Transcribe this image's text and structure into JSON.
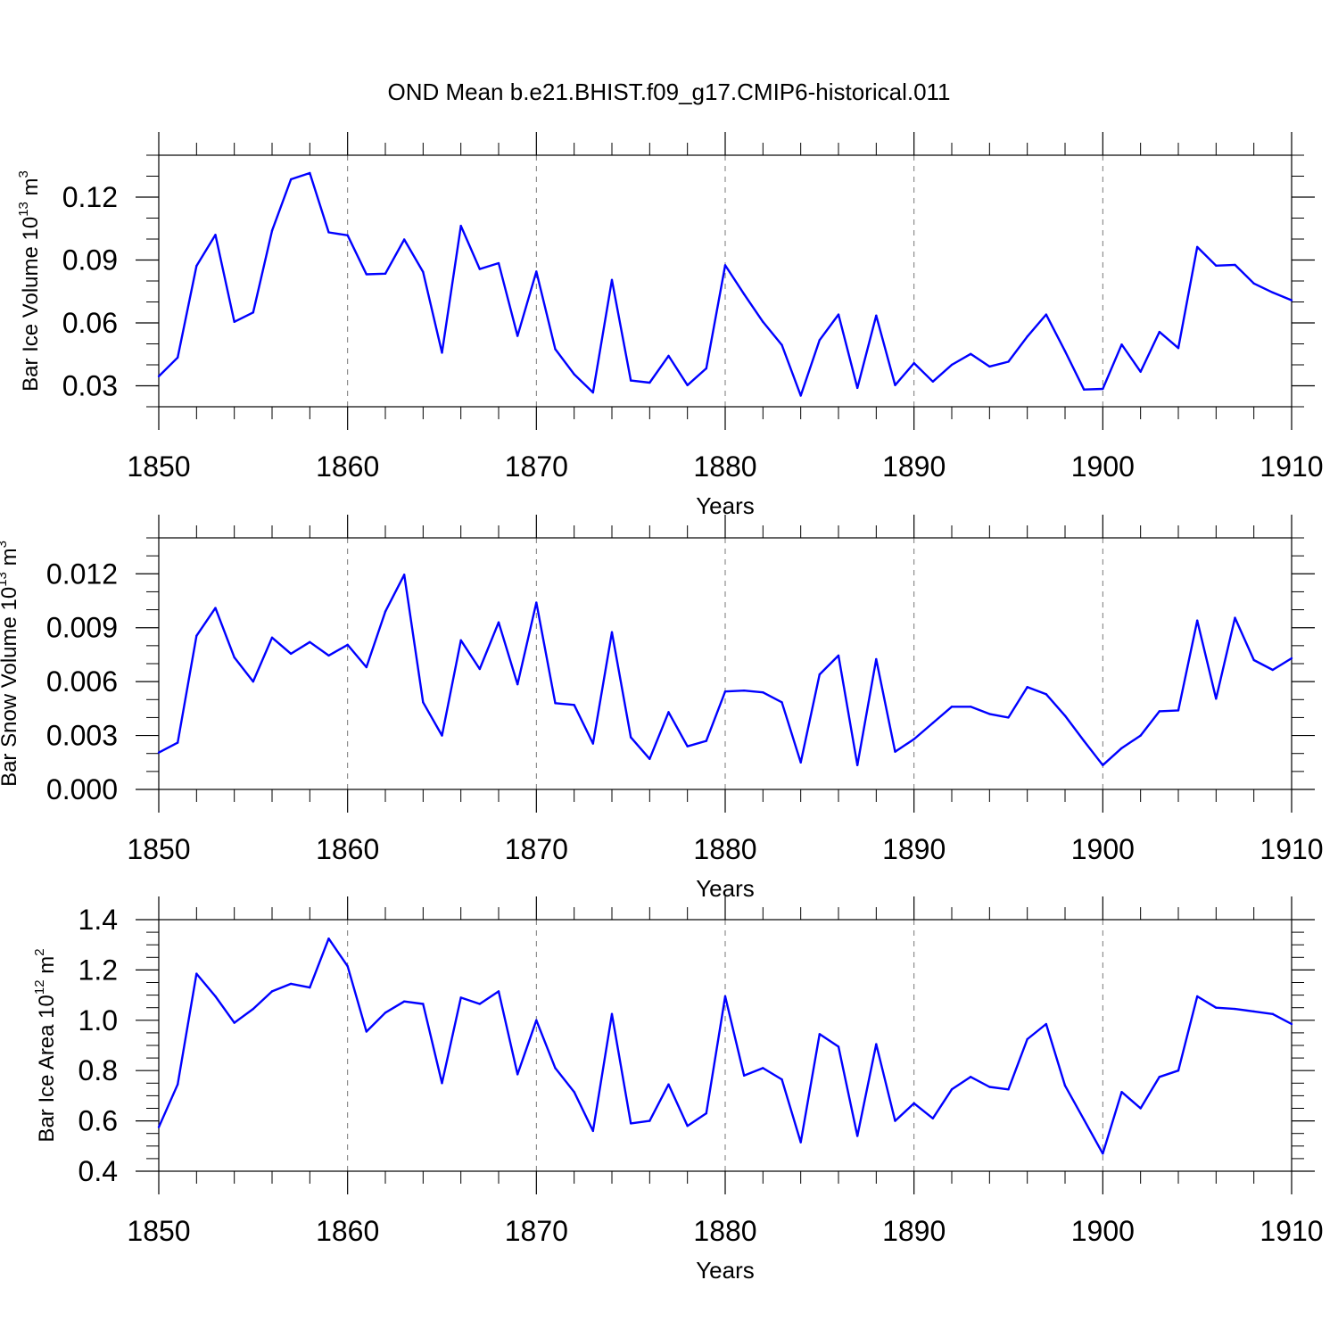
{
  "title": "OND Mean b.e21.BHIST.f09_g17.CMIP6-historical.011",
  "chart_data": [
    {
      "type": "line",
      "ylabel_text": "Bar Ice Volume 10",
      "ylabel_exp": "13",
      "ylabel_unit": " m",
      "ylabel_unit_exp": "3",
      "xlabel": "Years",
      "xlim": [
        1850,
        1910
      ],
      "ylim": [
        0.02,
        0.14
      ],
      "yticks": [
        0.03,
        0.06,
        0.09,
        0.12
      ],
      "ytick_labels": [
        "0.03",
        "0.06",
        "0.09",
        "0.12"
      ],
      "yminor_step": 0.01,
      "xticks": [
        1850,
        1860,
        1870,
        1880,
        1890,
        1900,
        1910
      ],
      "xtick_labels": [
        "1850",
        "1860",
        "1870",
        "1880",
        "1890",
        "1900",
        "1910"
      ],
      "line_color": "#0000ff",
      "x": [
        1850,
        1851,
        1852,
        1853,
        1854,
        1855,
        1856,
        1857,
        1858,
        1859,
        1860,
        1861,
        1862,
        1863,
        1864,
        1865,
        1866,
        1867,
        1868,
        1869,
        1870,
        1871,
        1872,
        1873,
        1874,
        1875,
        1876,
        1877,
        1878,
        1879,
        1880,
        1881,
        1882,
        1883,
        1884,
        1885,
        1886,
        1887,
        1888,
        1889,
        1890,
        1891,
        1892,
        1893,
        1894,
        1895,
        1896,
        1897,
        1898,
        1899,
        1900,
        1901,
        1902,
        1903,
        1904,
        1905,
        1906,
        1907,
        1908,
        1909,
        1910
      ],
      "values": [
        0.0345,
        0.0435,
        0.0872,
        0.102,
        0.0605,
        0.065,
        0.104,
        0.1285,
        0.1315,
        0.1032,
        0.1018,
        0.0832,
        0.0835,
        0.0998,
        0.0843,
        0.0458,
        0.1063,
        0.0857,
        0.0885,
        0.0538,
        0.0845,
        0.0475,
        0.0355,
        0.0268,
        0.0805,
        0.0325,
        0.0315,
        0.0443,
        0.0303,
        0.0383,
        0.0875,
        0.0737,
        0.0605,
        0.0495,
        0.0253,
        0.0518,
        0.064,
        0.029,
        0.0635,
        0.0303,
        0.0408,
        0.032,
        0.04,
        0.0452,
        0.0392,
        0.0415,
        0.0535,
        0.064,
        0.0465,
        0.0282,
        0.0285,
        0.0497,
        0.0367,
        0.0557,
        0.048,
        0.0962,
        0.0873,
        0.0877,
        0.0788,
        0.0745,
        0.0708
      ]
    },
    {
      "type": "line",
      "ylabel_text": "Bar Snow Volume 10",
      "ylabel_exp": "13",
      "ylabel_unit": " m",
      "ylabel_unit_exp": "3",
      "xlabel": "Years",
      "xlim": [
        1850,
        1910
      ],
      "ylim": [
        0.0,
        0.014
      ],
      "yticks": [
        0.0,
        0.003,
        0.006,
        0.009,
        0.012
      ],
      "ytick_labels": [
        "0.000",
        "0.003",
        "0.006",
        "0.009",
        "0.012"
      ],
      "yminor_step": 0.001,
      "xticks": [
        1850,
        1860,
        1870,
        1880,
        1890,
        1900,
        1910
      ],
      "xtick_labels": [
        "1850",
        "1860",
        "1870",
        "1880",
        "1890",
        "1900",
        "1910"
      ],
      "line_color": "#0000ff",
      "x": [
        1850,
        1851,
        1852,
        1853,
        1854,
        1855,
        1856,
        1857,
        1858,
        1859,
        1860,
        1861,
        1862,
        1863,
        1864,
        1865,
        1866,
        1867,
        1868,
        1869,
        1870,
        1871,
        1872,
        1873,
        1874,
        1875,
        1876,
        1877,
        1878,
        1879,
        1880,
        1881,
        1882,
        1883,
        1884,
        1885,
        1886,
        1887,
        1888,
        1889,
        1890,
        1891,
        1892,
        1893,
        1894,
        1895,
        1896,
        1897,
        1898,
        1899,
        1900,
        1901,
        1902,
        1903,
        1904,
        1905,
        1906,
        1907,
        1908,
        1909,
        1910
      ],
      "values": [
        0.00205,
        0.0026,
        0.00855,
        0.0101,
        0.00735,
        0.006,
        0.00845,
        0.00755,
        0.0082,
        0.00745,
        0.00805,
        0.0068,
        0.0099,
        0.01195,
        0.00485,
        0.003,
        0.0083,
        0.0067,
        0.0093,
        0.00585,
        0.0104,
        0.0048,
        0.0047,
        0.00255,
        0.00875,
        0.0029,
        0.0017,
        0.0043,
        0.0024,
        0.0027,
        0.00545,
        0.0055,
        0.0054,
        0.00485,
        0.0015,
        0.0064,
        0.00745,
        0.00135,
        0.00725,
        0.0021,
        0.0028,
        0.0037,
        0.0046,
        0.0046,
        0.0042,
        0.004,
        0.0057,
        0.0053,
        0.0041,
        0.0027,
        0.00135,
        0.0023,
        0.003,
        0.00435,
        0.0044,
        0.0094,
        0.00505,
        0.00955,
        0.0072,
        0.00665,
        0.0073
      ]
    },
    {
      "type": "line",
      "ylabel_text": "Bar Ice Area 10",
      "ylabel_exp": "12",
      "ylabel_unit": " m",
      "ylabel_unit_exp": "2",
      "xlabel": "Years",
      "xlim": [
        1850,
        1910
      ],
      "ylim": [
        0.4,
        1.4
      ],
      "yticks": [
        0.4,
        0.6,
        0.8,
        1.0,
        1.2,
        1.4
      ],
      "ytick_labels": [
        "0.4",
        "0.6",
        "0.8",
        "1.0",
        "1.2",
        "1.4"
      ],
      "yminor_step": 0.05,
      "xticks": [
        1850,
        1860,
        1870,
        1880,
        1890,
        1900,
        1910
      ],
      "xtick_labels": [
        "1850",
        "1860",
        "1870",
        "1880",
        "1890",
        "1900",
        "1910"
      ],
      "line_color": "#0000ff",
      "x": [
        1850,
        1851,
        1852,
        1853,
        1854,
        1855,
        1856,
        1857,
        1858,
        1859,
        1860,
        1861,
        1862,
        1863,
        1864,
        1865,
        1866,
        1867,
        1868,
        1869,
        1870,
        1871,
        1872,
        1873,
        1874,
        1875,
        1876,
        1877,
        1878,
        1879,
        1880,
        1881,
        1882,
        1883,
        1884,
        1885,
        1886,
        1887,
        1888,
        1889,
        1890,
        1891,
        1892,
        1893,
        1894,
        1895,
        1896,
        1897,
        1898,
        1899,
        1900,
        1901,
        1902,
        1903,
        1904,
        1905,
        1906,
        1907,
        1908,
        1909,
        1910
      ],
      "values": [
        0.575,
        0.745,
        1.185,
        1.095,
        0.99,
        1.045,
        1.115,
        1.145,
        1.13,
        1.325,
        1.215,
        0.955,
        1.03,
        1.075,
        1.065,
        0.75,
        1.09,
        1.065,
        1.115,
        0.785,
        1.0,
        0.81,
        0.715,
        0.56,
        1.025,
        0.59,
        0.6,
        0.745,
        0.58,
        0.63,
        1.095,
        0.78,
        0.81,
        0.765,
        0.515,
        0.945,
        0.895,
        0.54,
        0.905,
        0.6,
        0.67,
        0.61,
        0.725,
        0.775,
        0.735,
        0.725,
        0.925,
        0.985,
        0.74,
        0.605,
        0.47,
        0.715,
        0.65,
        0.775,
        0.8,
        1.095,
        1.05,
        1.045,
        1.035,
        1.025,
        0.985
      ]
    }
  ]
}
